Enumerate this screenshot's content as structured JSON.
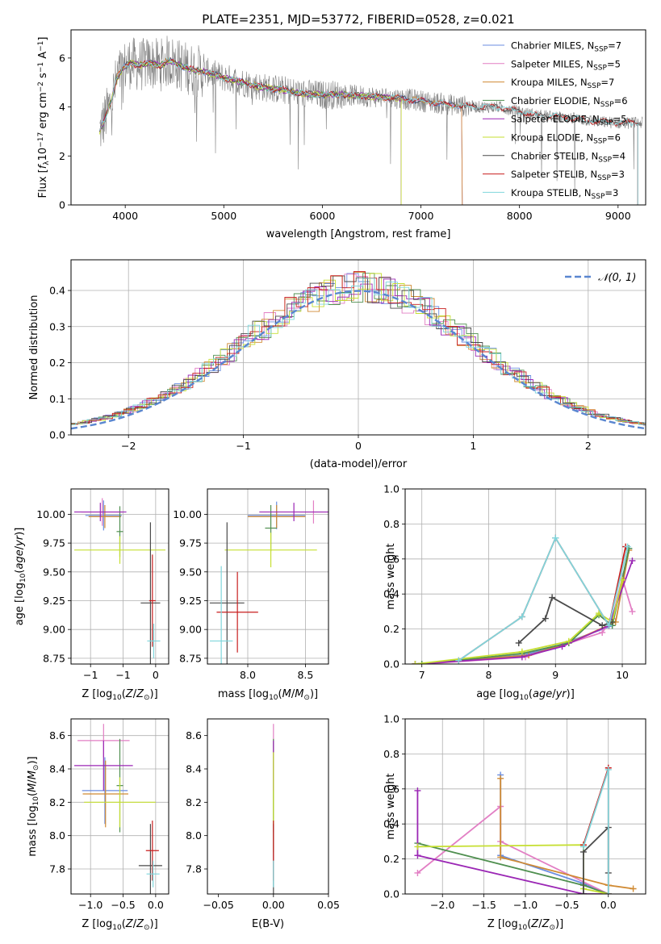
{
  "figure_title": "PLATE=2351, MJD=53772, FIBERID=0528, z=0.021",
  "model_colors": [
    "#6b8ee0",
    "#e27fc4",
    "#d08a33",
    "#4f8f4f",
    "#9b27b5",
    "#c6df32",
    "#4a4a4a",
    "#c81e1e",
    "#7fd6dc"
  ],
  "chart_data": [
    {
      "id": "spectrum",
      "type": "line",
      "title": "PLATE=2351, MJD=53772, FIBERID=0528, z=0.021",
      "xlabel": "wavelength [Angstrom, rest frame]",
      "ylabel": "Flux [f_λ 10^-17 erg cm^-2 s^-1 A^-1]",
      "xlim": [
        3450,
        9280
      ],
      "ylim": [
        0,
        7.15
      ],
      "xticks": [
        4000,
        5000,
        6000,
        7000,
        8000,
        9000
      ],
      "yticks": [
        0,
        2,
        4,
        6
      ],
      "grid": false,
      "legend_position": "top-right",
      "data_color": "#808080",
      "continuum": {
        "x": [
          3740,
          3800,
          3860,
          3920,
          3980,
          4050,
          4150,
          4250,
          4350,
          4450,
          4550,
          4700,
          4850,
          5000,
          5200,
          5400,
          5600,
          5800,
          6000,
          6200,
          6400,
          6600,
          6800,
          7000,
          7200,
          7400,
          7600,
          7800,
          8000,
          8200,
          8400,
          8600,
          8800,
          9000,
          9200
        ],
        "y": [
          3.0,
          3.6,
          4.3,
          5.2,
          5.6,
          5.8,
          5.7,
          5.8,
          5.7,
          5.9,
          5.7,
          5.5,
          5.4,
          5.2,
          5.0,
          4.8,
          4.7,
          4.55,
          4.5,
          4.5,
          4.45,
          4.4,
          4.35,
          4.25,
          4.15,
          4.05,
          4.0,
          4.0,
          3.8,
          3.65,
          3.6,
          3.5,
          3.4,
          3.35,
          3.35
        ]
      },
      "series": [
        {
          "name": "Chabrier MILES, N_SSP=7",
          "end_wavelength": 7420
        },
        {
          "name": "Salpeter MILES, N_SSP=5",
          "end_wavelength": 7420
        },
        {
          "name": "Kroupa MILES, N_SSP=7",
          "end_wavelength": 7420
        },
        {
          "name": "Chabrier ELODIE, N_SSP=6",
          "end_wavelength": 6800
        },
        {
          "name": "Salpeter ELODIE, N_SSP=5",
          "end_wavelength": 6800
        },
        {
          "name": "Kroupa ELODIE, N_SSP=6",
          "end_wavelength": 6800
        },
        {
          "name": "Chabrier STELIB, N_SSP=4",
          "end_wavelength": 9200
        },
        {
          "name": "Salpeter STELIB, N_SSP=3",
          "end_wavelength": 9200
        },
        {
          "name": "Kroupa STELIB, N_SSP=3",
          "end_wavelength": 9200
        }
      ]
    },
    {
      "id": "residuals",
      "type": "line",
      "xlabel": "(data-model)/error",
      "ylabel": "Normed distribution",
      "xlim": [
        -2.5,
        2.5
      ],
      "ylim": [
        0,
        0.485
      ],
      "xticks": [
        -2,
        -1,
        0,
        1,
        2
      ],
      "yticks": [
        0.0,
        0.1,
        0.2,
        0.3,
        0.4
      ],
      "grid": true,
      "legend_position": "top-right",
      "reference_curve": {
        "name": "N(0,1)",
        "label_math": "𝒩(0, 1)",
        "mean": 0,
        "sigma": 1,
        "color": "#5a86d0"
      },
      "histogram_bin_width": 0.1,
      "histogram_series": 9
    },
    {
      "id": "age_vs_Z",
      "type": "scatter",
      "xlabel": "Z [log10(Z/Z⊙)]",
      "ylabel": "age [log10(age/yr)]",
      "xlim": [
        -1.3,
        0.2
      ],
      "ylim": [
        8.7,
        10.22
      ],
      "xticks": [
        -1,
        -0.5,
        0
      ],
      "yticks": [
        8.75,
        9.0,
        9.25,
        9.5,
        9.75,
        10.0,
        10.25
      ],
      "grid": true,
      "points": [
        {
          "x": -0.8,
          "y": 9.99,
          "xerr": 0.28,
          "yerr": 0.13,
          "model": 0
        },
        {
          "x": -0.82,
          "y": 10.02,
          "xerr": 0.32,
          "yerr": 0.12,
          "model": 1
        },
        {
          "x": -0.78,
          "y": 9.98,
          "xerr": 0.25,
          "yerr": 0.1,
          "model": 2
        },
        {
          "x": -0.55,
          "y": 9.85,
          "xerr": 0.05,
          "yerr": 0.22,
          "model": 3
        },
        {
          "x": -0.85,
          "y": 10.02,
          "xerr": 0.4,
          "yerr": 0.08,
          "model": 4
        },
        {
          "x": -0.55,
          "y": 9.69,
          "xerr": 0.7,
          "yerr": 0.12,
          "model": 5
        },
        {
          "x": -0.08,
          "y": 9.23,
          "xerr": 0.15,
          "yerr": 0.7,
          "model": 6
        },
        {
          "x": -0.05,
          "y": 9.25,
          "xerr": 0.05,
          "yerr": 0.4,
          "model": 7
        },
        {
          "x": -0.03,
          "y": 8.9,
          "xerr": 0.1,
          "yerr": 0.15,
          "model": 8
        }
      ]
    },
    {
      "id": "age_vs_mass",
      "type": "scatter",
      "xlabel": "mass [log10(M/M⊙)]",
      "ylabel": "",
      "xlim": [
        7.65,
        8.7
      ],
      "ylim": [
        8.7,
        10.22
      ],
      "xticks": [
        8.0,
        8.5
      ],
      "yticks": [
        8.75,
        9.0,
        9.25,
        9.5,
        9.75,
        10.0,
        10.25
      ],
      "grid": true,
      "points": [
        {
          "x": 8.25,
          "y": 9.99,
          "xerr": 0.25,
          "yerr": 0.12,
          "model": 0
        },
        {
          "x": 8.57,
          "y": 10.02,
          "xerr": 0.12,
          "yerr": 0.1,
          "model": 1
        },
        {
          "x": 8.25,
          "y": 9.98,
          "xerr": 0.25,
          "yerr": 0.1,
          "model": 2
        },
        {
          "x": 8.2,
          "y": 9.88,
          "xerr": 0.05,
          "yerr": 0.2,
          "model": 3
        },
        {
          "x": 8.4,
          "y": 10.02,
          "xerr": 0.3,
          "yerr": 0.08,
          "model": 4
        },
        {
          "x": 8.2,
          "y": 9.69,
          "xerr": 0.4,
          "yerr": 0.15,
          "model": 5
        },
        {
          "x": 7.82,
          "y": 9.23,
          "xerr": 0.15,
          "yerr": 0.7,
          "model": 6
        },
        {
          "x": 7.91,
          "y": 9.15,
          "xerr": 0.18,
          "yerr": 0.35,
          "model": 7
        },
        {
          "x": 7.77,
          "y": 8.9,
          "xerr": 0.1,
          "yerr": 0.65,
          "model": 8
        }
      ]
    },
    {
      "id": "weight_vs_age",
      "type": "line",
      "xlabel": "age [log10(age/yr)]",
      "ylabel": "mass weight",
      "xlim": [
        6.75,
        10.35
      ],
      "ylim": [
        0,
        1.0
      ],
      "xticks": [
        7,
        8,
        9,
        10
      ],
      "yticks": [
        0.0,
        0.2,
        0.4,
        0.6,
        0.8,
        1.0
      ],
      "grid": true,
      "series": [
        {
          "model": 0,
          "x": [
            6.9,
            8.5,
            9.0,
            9.85,
            10.1
          ],
          "y": [
            0.0,
            0.05,
            0.1,
            0.22,
            0.66
          ]
        },
        {
          "model": 1,
          "x": [
            7.0,
            8.55,
            9.7,
            9.85,
            10.0,
            10.15
          ],
          "y": [
            0.0,
            0.04,
            0.18,
            0.26,
            0.49,
            0.3
          ]
        },
        {
          "model": 2,
          "x": [
            6.9,
            8.6,
            9.2,
            9.9,
            10.1
          ],
          "y": [
            0.0,
            0.05,
            0.12,
            0.24,
            0.65
          ]
        },
        {
          "model": 3,
          "x": [
            7.0,
            8.5,
            9.2,
            9.65,
            9.85,
            10.1
          ],
          "y": [
            0.0,
            0.06,
            0.12,
            0.28,
            0.22,
            0.66
          ]
        },
        {
          "model": 4,
          "x": [
            6.9,
            8.5,
            9.1,
            9.8,
            10.15
          ],
          "y": [
            0.0,
            0.04,
            0.1,
            0.22,
            0.59
          ]
        },
        {
          "model": 5,
          "x": [
            6.9,
            8.5,
            9.2,
            9.65,
            9.85,
            10.0
          ],
          "y": [
            0.0,
            0.07,
            0.13,
            0.29,
            0.24,
            0.48
          ]
        },
        {
          "model": 6,
          "x": [
            8.45,
            8.85,
            8.95,
            9.7,
            9.85
          ],
          "y": [
            0.12,
            0.26,
            0.38,
            0.22,
            0.24
          ]
        },
        {
          "model": 7,
          "x": [
            7.55,
            8.5,
            9.0,
            9.8,
            10.05
          ],
          "y": [
            0.02,
            0.27,
            0.72,
            0.22,
            0.67
          ]
        },
        {
          "model": 8,
          "x": [
            7.55,
            8.5,
            9.0,
            9.8,
            10.08
          ],
          "y": [
            0.02,
            0.27,
            0.72,
            0.22,
            0.67
          ]
        }
      ]
    },
    {
      "id": "mass_vs_Z",
      "type": "scatter",
      "xlabel": "Z [log10(Z/Z⊙)]",
      "ylabel": "mass [log10(M/M⊙)]",
      "xlim": [
        -1.3,
        0.2
      ],
      "ylim": [
        7.65,
        8.7
      ],
      "xticks": [
        -1,
        -0.5,
        0
      ],
      "yticks": [
        7.8,
        8.0,
        8.2,
        8.4,
        8.6
      ],
      "grid": true,
      "points": [
        {
          "x": -0.78,
          "y": 8.27,
          "xerr": 0.35,
          "yerr": 0.2,
          "model": 0
        },
        {
          "x": -0.8,
          "y": 8.57,
          "xerr": 0.4,
          "yerr": 0.1,
          "model": 1
        },
        {
          "x": -0.77,
          "y": 8.25,
          "xerr": 0.35,
          "yerr": 0.2,
          "model": 2
        },
        {
          "x": -0.55,
          "y": 8.3,
          "xerr": 0.05,
          "yerr": 0.28,
          "model": 3
        },
        {
          "x": -0.8,
          "y": 8.42,
          "xerr": 0.45,
          "yerr": 0.15,
          "model": 4
        },
        {
          "x": -0.55,
          "y": 8.2,
          "xerr": 0.55,
          "yerr": 0.15,
          "model": 5
        },
        {
          "x": -0.08,
          "y": 7.82,
          "xerr": 0.18,
          "yerr": 0.25,
          "model": 6
        },
        {
          "x": -0.05,
          "y": 7.91,
          "xerr": 0.1,
          "yerr": 0.18,
          "model": 7
        },
        {
          "x": -0.04,
          "y": 7.77,
          "xerr": 0.1,
          "yerr": 0.08,
          "model": 8
        }
      ]
    },
    {
      "id": "mass_vs_ebv",
      "type": "scatter",
      "xlabel": "E(B-V)",
      "ylabel": "",
      "xlim": [
        -0.06,
        0.05
      ],
      "ylim": [
        7.65,
        8.7
      ],
      "xticks": [
        -0.05,
        0.0,
        0.05
      ],
      "yticks": [
        7.8,
        8.0,
        8.2,
        8.4,
        8.6
      ],
      "grid": false,
      "points": [
        {
          "x": 0.0,
          "y": 8.27,
          "yerr": 0.2,
          "model": 0
        },
        {
          "x": 0.0,
          "y": 8.57,
          "yerr": 0.1,
          "model": 1
        },
        {
          "x": 0.0,
          "y": 8.25,
          "yerr": 0.2,
          "model": 2
        },
        {
          "x": 0.0,
          "y": 8.3,
          "yerr": 0.28,
          "model": 3
        },
        {
          "x": 0.0,
          "y": 8.42,
          "yerr": 0.15,
          "model": 4
        },
        {
          "x": 0.0,
          "y": 8.2,
          "yerr": 0.3,
          "model": 5
        },
        {
          "x": 0.0,
          "y": 7.82,
          "yerr": 0.25,
          "model": 6
        },
        {
          "x": 0.0,
          "y": 7.91,
          "yerr": 0.18,
          "model": 7
        },
        {
          "x": 0.0,
          "y": 7.77,
          "yerr": 0.08,
          "model": 8
        }
      ]
    },
    {
      "id": "weight_vs_Z",
      "type": "line",
      "xlabel": "Z [log10(Z/Z⊙)]",
      "ylabel": "mass weight",
      "xlim": [
        -2.45,
        0.45
      ],
      "ylim": [
        0,
        1.0
      ],
      "xticks": [
        -2.0,
        -1.5,
        -1.0,
        -0.5,
        0.0
      ],
      "yticks": [
        0.0,
        0.2,
        0.4,
        0.6,
        0.8,
        1.0
      ],
      "grid": true,
      "series": [
        {
          "model": 0,
          "x": [
            -1.3,
            -1.3,
            -0.3,
            0.0
          ],
          "y": [
            0.68,
            0.22,
            0.06,
            0.0
          ]
        },
        {
          "model": 1,
          "x": [
            -2.3,
            -1.3,
            -1.3,
            0.0
          ],
          "y": [
            0.12,
            0.5,
            0.3,
            0.0
          ]
        },
        {
          "model": 2,
          "x": [
            -1.3,
            -1.3,
            0.0,
            0.3
          ],
          "y": [
            0.66,
            0.21,
            0.05,
            0.03
          ]
        },
        {
          "model": 3,
          "x": [
            -2.3,
            -0.3,
            0.0
          ],
          "y": [
            0.29,
            0.05,
            0.0
          ]
        },
        {
          "model": 4,
          "x": [
            -2.3,
            -2.3,
            -0.3,
            0.0
          ],
          "y": [
            0.59,
            0.22,
            0.0,
            0.0
          ]
        },
        {
          "model": 5,
          "x": [
            -2.3,
            -0.3,
            -0.3,
            0.0
          ],
          "y": [
            0.27,
            0.28,
            0.03,
            0.0
          ]
        },
        {
          "model": 6,
          "x": [
            -0.3,
            -0.3,
            0.0,
            0.0
          ],
          "y": [
            0.0,
            0.24,
            0.38,
            0.12
          ]
        },
        {
          "model": 7,
          "x": [
            -0.3,
            0.0,
            0.0
          ],
          "y": [
            0.28,
            0.72,
            0.0
          ]
        },
        {
          "model": 8,
          "x": [
            -0.3,
            0.0,
            0.0
          ],
          "y": [
            0.27,
            0.71,
            0.0
          ]
        }
      ]
    }
  ]
}
